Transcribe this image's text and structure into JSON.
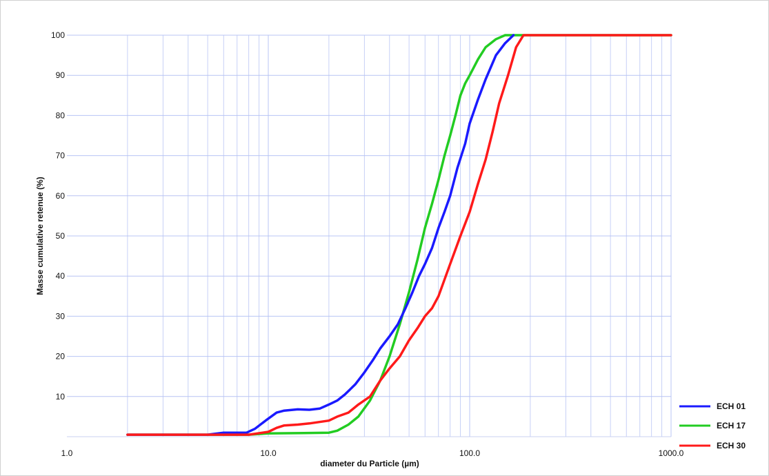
{
  "chart_data": {
    "type": "line",
    "title": "",
    "xlabel": "diameter du Particle (µm)",
    "ylabel": "Masse cumulative retenue (%)",
    "x_scale": "log",
    "xlim": [
      1,
      1000
    ],
    "ylim": [
      0,
      100
    ],
    "x_ticks": [
      1,
      10,
      100,
      1000
    ],
    "x_tick_labels": [
      "1.0",
      "10.0",
      "100.0",
      "1000.0"
    ],
    "y_ticks": [
      10,
      20,
      30,
      40,
      50,
      60,
      70,
      80,
      90,
      100
    ],
    "y_tick_labels": [
      "10",
      "20",
      "30",
      "40",
      "50",
      "60",
      "70",
      "80",
      "90",
      "100"
    ],
    "grid": true,
    "legend_position": "bottom-right",
    "series": [
      {
        "name": "ECH 01",
        "color": "#1a1aff",
        "x": [
          2,
          5,
          6,
          7,
          7.8,
          8.6,
          9.7,
          11,
          12,
          14,
          16,
          18,
          20,
          22,
          24,
          27,
          30,
          33,
          36,
          40,
          44,
          48,
          52,
          56,
          60,
          65,
          70,
          75,
          80,
          87,
          95,
          100,
          110,
          120,
          135,
          150,
          165
        ],
        "y": [
          0.5,
          0.5,
          1,
          1,
          1,
          2,
          4,
          6,
          6.5,
          6.8,
          6.7,
          7,
          8,
          9,
          10.5,
          13,
          16,
          19,
          22,
          25,
          28,
          32,
          36,
          40,
          43,
          47,
          52,
          56,
          60,
          67,
          73,
          78,
          84,
          89,
          95,
          98,
          100
        ]
      },
      {
        "name": "ECH 17",
        "color": "#22cc22",
        "x": [
          2,
          8,
          10,
          15,
          20,
          22,
          25,
          28,
          32,
          36,
          40,
          45,
          50,
          55,
          60,
          65,
          70,
          75,
          80,
          85,
          90,
          95,
          100,
          110,
          120,
          135,
          150,
          1000
        ],
        "y": [
          0.5,
          0.5,
          0.8,
          0.9,
          1,
          1.5,
          3,
          5,
          9,
          14,
          20,
          28,
          36,
          44,
          52,
          58,
          64,
          70,
          75,
          80,
          85,
          88,
          90,
          94,
          97,
          99,
          100,
          100
        ]
      },
      {
        "name": "ECH 30",
        "color": "#ff1a1a",
        "x": [
          2,
          8,
          10,
          11,
          12,
          14,
          16,
          20,
          22,
          25,
          28,
          32,
          36,
          40,
          45,
          50,
          55,
          60,
          65,
          70,
          80,
          90,
          100,
          110,
          120,
          130,
          140,
          155,
          170,
          185,
          200,
          1000
        ],
        "y": [
          0.5,
          0.5,
          1.2,
          2.2,
          2.8,
          3,
          3.3,
          4,
          5,
          6,
          8,
          10,
          14,
          17,
          20,
          24,
          27,
          30,
          32,
          35,
          43,
          50,
          56,
          63,
          69,
          76,
          83,
          90,
          97,
          100,
          100,
          100
        ]
      }
    ]
  }
}
